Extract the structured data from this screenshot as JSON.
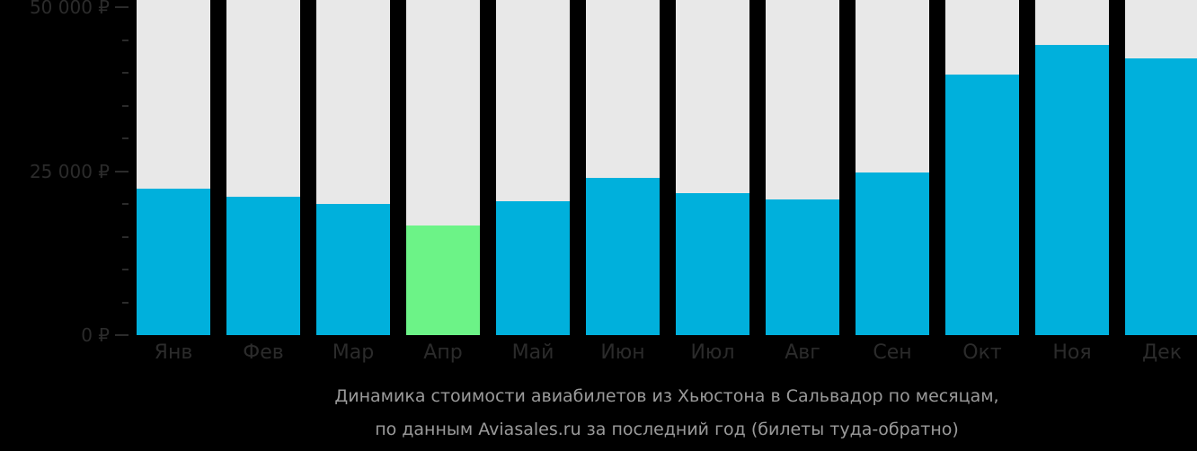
{
  "chart_data": {
    "type": "bar",
    "title": "Динамика стоимости авиабилетов из Хьюстона в Сальвадор по месяцам, по данным Aviasales.ru за последний год (билеты туда-обратно)",
    "xlabel": "",
    "ylabel": "",
    "ylim": [
      0,
      50000
    ],
    "categories": [
      "Янв",
      "Фев",
      "Мар",
      "Апр",
      "Май",
      "Июн",
      "Июл",
      "Авг",
      "Сен",
      "Окт",
      "Ноя",
      "Дек"
    ],
    "values": [
      22300,
      21100,
      20000,
      16700,
      20400,
      24000,
      21600,
      20700,
      24800,
      39700,
      44200,
      42200
    ],
    "highlight_index": 3,
    "colors": {
      "bar": "#00b0dc",
      "highlight": "#6cf387",
      "background_track": "#e8e8e8",
      "page_bg": "#000000"
    },
    "y_ticks": [
      {
        "value": 50000,
        "label": "50 000 ₽"
      },
      {
        "value": 25000,
        "label": "25 000 ₽"
      },
      {
        "value": 0,
        "label": "0 ₽"
      }
    ],
    "grid": false,
    "legend": "none"
  },
  "caption": {
    "line1": "Динамика стоимости авиабилетов из Хьюстона в Сальвадор по месяцам,",
    "line2": "по данным Aviasales.ru за последний год (билеты туда-обратно)"
  }
}
